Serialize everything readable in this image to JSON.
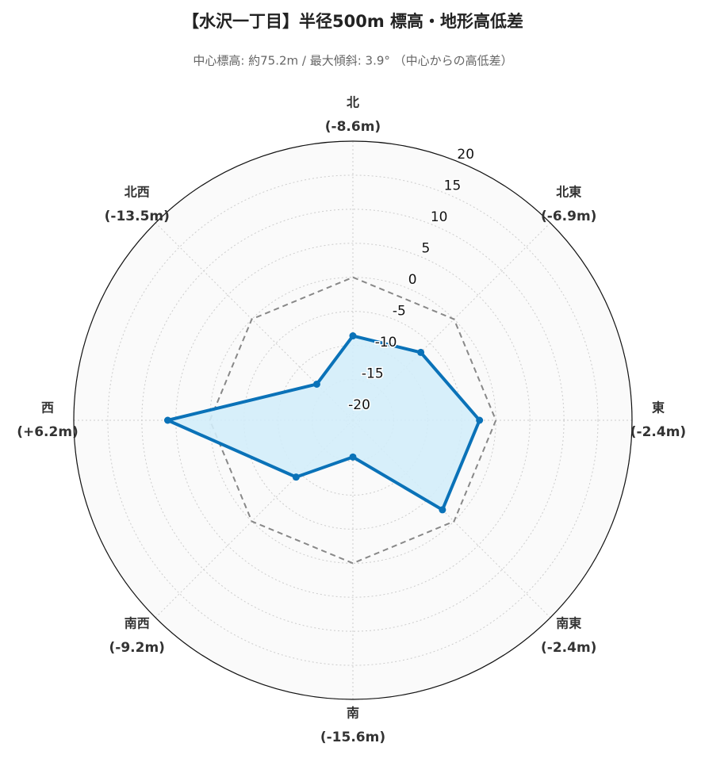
{
  "chart_data": {
    "type": "radar",
    "title": "【水沢一丁目】半径500m 標高・地形高低差",
    "subtitle": "中心標高: 約75.2m / 最大傾斜: 3.9° （中心からの高低差）",
    "categories": [
      "北",
      "北東",
      "東",
      "南東",
      "南",
      "南西",
      "西",
      "北西"
    ],
    "series": [
      {
        "name": "高低差",
        "color": "#0a72b8",
        "fill": "#d3edf9",
        "values": [
          -8.6,
          -6.9,
          -2.4,
          -2.4,
          -15.6,
          -9.2,
          6.2,
          -13.5
        ],
        "value_labels": [
          "(-8.6m)",
          "(-6.9m)",
          "(-2.4m)",
          "(-2.4m)",
          "(-15.6m)",
          "(-9.2m)",
          "(+6.2m)",
          "(-13.5m)"
        ]
      }
    ],
    "rlim": [
      -21,
      20
    ],
    "rticks": [
      -20,
      -15,
      -10,
      -5,
      0,
      5,
      10,
      15,
      20
    ],
    "reference_value": 0,
    "grid": true
  }
}
